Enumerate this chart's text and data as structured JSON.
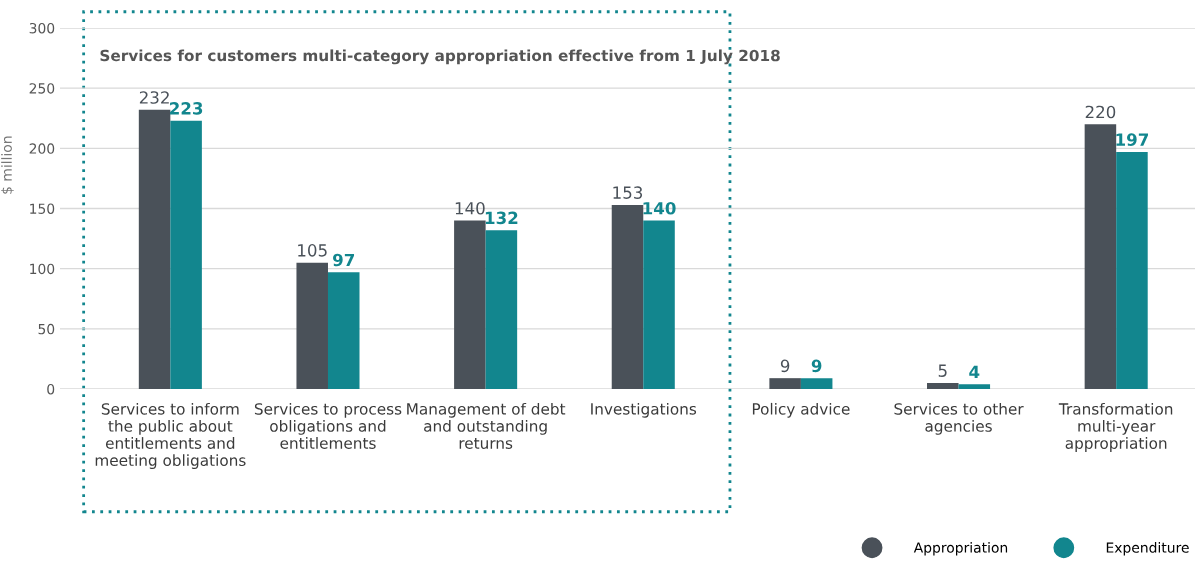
{
  "chart_data": {
    "type": "bar",
    "ylabel": "$ million",
    "categories": [
      "Services to inform\nthe public about\nentitlements and\nmeeting obligations",
      "Services to process\nobligations and\nentitlements",
      "Management of debt\nand outstanding\nreturns",
      "Investigations",
      "Policy advice",
      "Services to other\nagencies",
      "Transformation\nmulti-year\nappropriation"
    ],
    "series": [
      {
        "name": "Appropriation",
        "color": "#4a5159",
        "values": [
          232,
          105,
          140,
          153,
          9,
          5,
          220
        ]
      },
      {
        "name": "Expenditure",
        "color": "#12868e",
        "values": [
          223,
          97,
          132,
          140,
          9,
          4,
          197
        ]
      }
    ],
    "ylim": [
      0,
      300
    ],
    "yticks": [
      0,
      50,
      100,
      150,
      200,
      250,
      300
    ],
    "grid": "y",
    "legend": "bottom right",
    "marker": "circle",
    "data_labels": true,
    "annotations": [
      "Services for customers multi-category appropriation effective from 1 July 2018"
    ]
  }
}
